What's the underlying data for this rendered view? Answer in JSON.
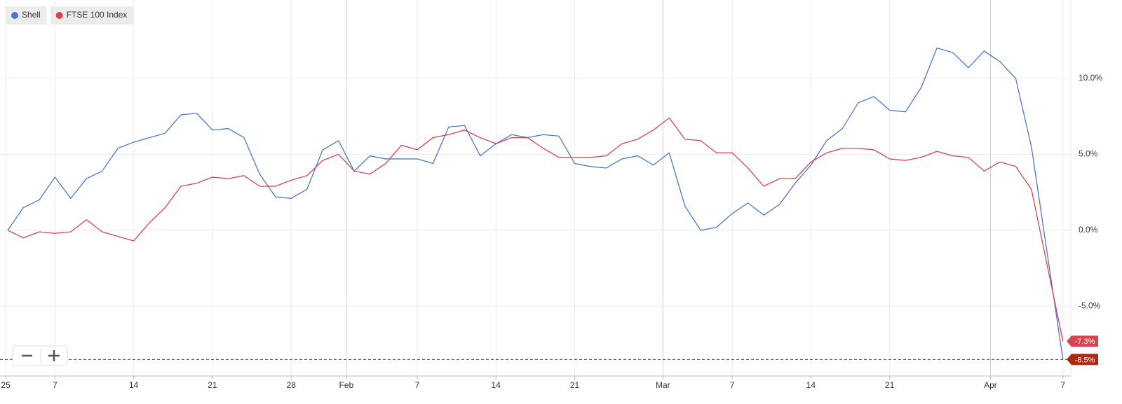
{
  "chart_data": {
    "type": "line",
    "x": [
      0,
      1,
      2,
      3,
      4,
      5,
      6,
      7,
      8,
      9,
      10,
      11,
      12,
      13,
      14,
      15,
      16,
      17,
      18,
      19,
      20,
      21,
      22,
      23,
      24,
      25,
      26,
      27,
      28,
      29,
      30,
      31,
      32,
      33,
      34,
      35,
      36,
      37,
      38,
      39,
      40,
      41,
      42,
      43,
      44,
      45,
      46,
      47,
      48,
      49,
      50,
      51,
      52,
      53,
      54,
      55,
      56,
      57,
      58,
      59,
      60,
      61,
      62,
      63,
      64,
      65,
      66,
      67
    ],
    "series": [
      {
        "name": "Shell",
        "color": "#4a78c8",
        "values": [
          0,
          1.5,
          2.0,
          3.5,
          2.1,
          3.4,
          3.9,
          5.4,
          5.8,
          6.1,
          6.4,
          7.6,
          7.7,
          6.6,
          6.7,
          6.1,
          3.7,
          2.2,
          2.1,
          2.7,
          5.3,
          5.9,
          3.9,
          4.9,
          4.7,
          4.7,
          4.7,
          4.4,
          6.8,
          6.9,
          4.9,
          5.7,
          6.3,
          6.1,
          6.3,
          6.2,
          4.4,
          4.2,
          4.1,
          4.7,
          4.9,
          4.3,
          5.1,
          1.6,
          0.0,
          0.2,
          1.1,
          1.8,
          1.0,
          1.7,
          3.1,
          4.3,
          5.9,
          6.7,
          8.4,
          8.8,
          7.9,
          7.8,
          9.4,
          12.0,
          11.7,
          10.7,
          11.8,
          11.1,
          10.0,
          5.5,
          -1.5,
          -8.5
        ],
        "value_labels": [
          null,
          null,
          null,
          null,
          null,
          null,
          null,
          null,
          null,
          null,
          null,
          null,
          null,
          null,
          null,
          null,
          null,
          null,
          null,
          null,
          null,
          null,
          null,
          null,
          null,
          null,
          null,
          null,
          null,
          null,
          null,
          null,
          null,
          null,
          null,
          null,
          null,
          null,
          null,
          null,
          null,
          null,
          null,
          null,
          null,
          null,
          null,
          null,
          null,
          null,
          null,
          null,
          null,
          null,
          null,
          null,
          null,
          null,
          null,
          null,
          null,
          null,
          null,
          null,
          null,
          null,
          null,
          "-8.5%"
        ]
      },
      {
        "name": "FTSE 100 Index",
        "color": "#d9434f",
        "values": [
          0,
          -0.5,
          -0.1,
          -0.2,
          -0.1,
          0.7,
          -0.1,
          -0.4,
          -0.7,
          0.5,
          1.5,
          2.9,
          3.1,
          3.5,
          3.4,
          3.6,
          2.9,
          2.9,
          3.3,
          3.6,
          4.6,
          5.0,
          3.9,
          3.7,
          4.4,
          5.6,
          5.3,
          6.1,
          6.3,
          6.6,
          6.1,
          5.7,
          6.1,
          6.1,
          5.4,
          4.8,
          4.8,
          4.8,
          4.9,
          5.7,
          6.0,
          6.6,
          7.4,
          6.0,
          5.9,
          5.1,
          5.1,
          4.1,
          2.9,
          3.4,
          3.4,
          4.5,
          5.1,
          5.4,
          5.4,
          5.3,
          4.7,
          4.6,
          4.8,
          5.2,
          4.9,
          4.8,
          3.9,
          4.5,
          4.2,
          2.7,
          -2.3,
          -7.3
        ],
        "value_labels": [
          null,
          null,
          null,
          null,
          null,
          null,
          null,
          null,
          null,
          null,
          null,
          null,
          null,
          null,
          null,
          null,
          null,
          null,
          null,
          null,
          null,
          null,
          null,
          null,
          null,
          null,
          null,
          null,
          null,
          null,
          null,
          null,
          null,
          null,
          null,
          null,
          null,
          null,
          null,
          null,
          null,
          null,
          null,
          null,
          null,
          null,
          null,
          null,
          null,
          null,
          null,
          null,
          null,
          null,
          null,
          null,
          null,
          null,
          null,
          null,
          null,
          null,
          null,
          null,
          null,
          null,
          null,
          "-7.3%"
        ]
      }
    ],
    "xlim": [
      -0.49,
      67.5
    ],
    "xticks": [
      {
        "value": -0.13,
        "label": "25"
      },
      {
        "value": 3,
        "label": "7"
      },
      {
        "value": 8,
        "label": "14"
      },
      {
        "value": 13,
        "label": "21"
      },
      {
        "value": 18,
        "label": "28"
      },
      {
        "value": 21.5,
        "label": "Feb"
      },
      {
        "value": 26,
        "label": "7"
      },
      {
        "value": 31,
        "label": "14"
      },
      {
        "value": 36,
        "label": "21"
      },
      {
        "value": 41.6,
        "label": "Mar"
      },
      {
        "value": 46,
        "label": "7"
      },
      {
        "value": 51,
        "label": "14"
      },
      {
        "value": 56,
        "label": "21"
      },
      {
        "value": 62.4,
        "label": "Apr"
      },
      {
        "value": 67,
        "label": "7"
      }
    ],
    "ylim": [
      -9.59,
      15.16
    ],
    "yticks": [
      {
        "value": 10,
        "label": "10.0%"
      },
      {
        "value": 5,
        "label": "5.0%"
      },
      {
        "value": 0,
        "label": "0.0%"
      },
      {
        "value": -5,
        "label": "-5.0%"
      }
    ],
    "grid": true,
    "legend": "top-left"
  }
}
